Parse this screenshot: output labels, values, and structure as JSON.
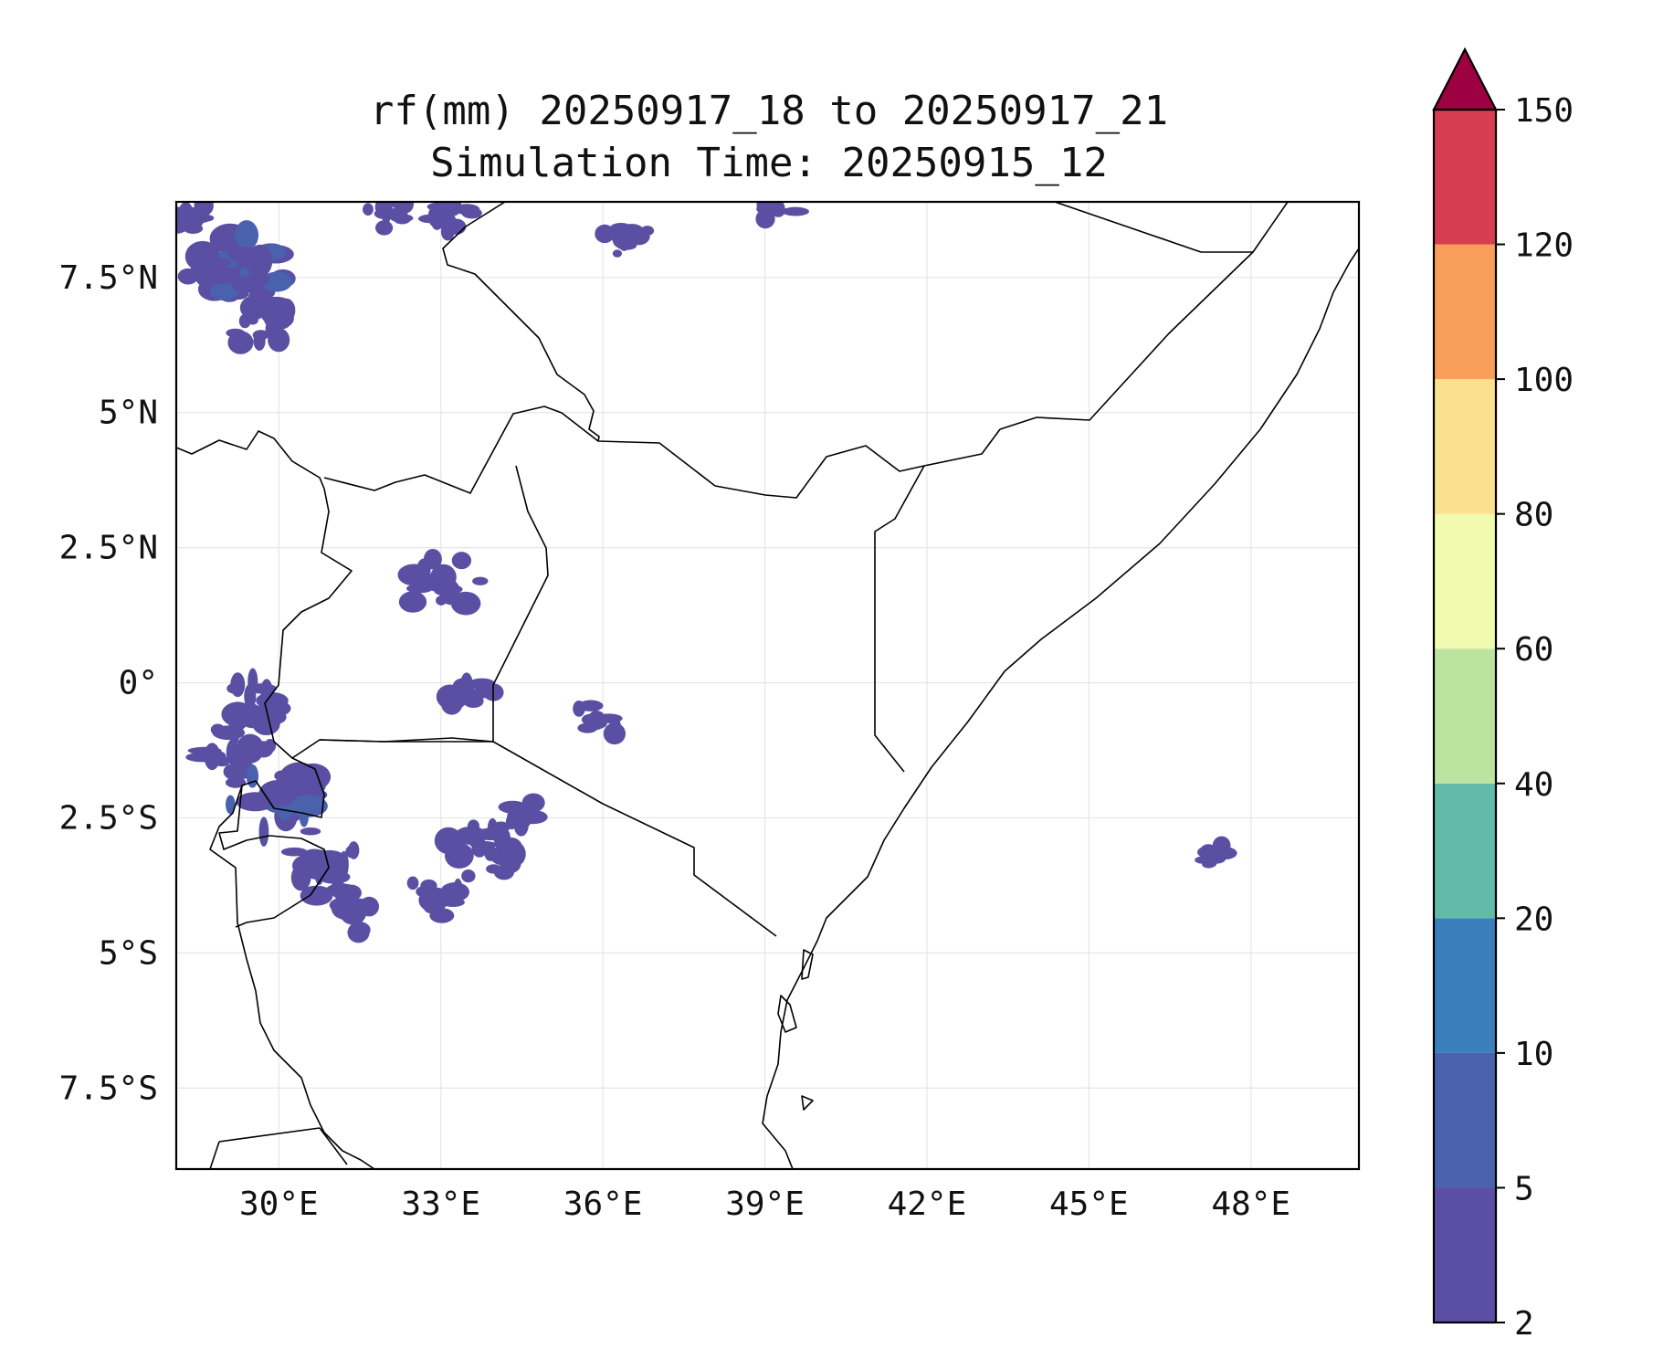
{
  "title": {
    "line1": "rf(mm) 20250917_18 to 20250917_21",
    "line2": "Simulation Time: 20250915_12"
  },
  "map": {
    "lon_range": [
      28.1,
      50.0
    ],
    "lat_range": [
      -9.0,
      8.9
    ],
    "x_ticks": [
      {
        "value": 30,
        "label": "30°E"
      },
      {
        "value": 33,
        "label": "33°E"
      },
      {
        "value": 36,
        "label": "36°E"
      },
      {
        "value": 39,
        "label": "39°E"
      },
      {
        "value": 42,
        "label": "42°E"
      },
      {
        "value": 45,
        "label": "45°E"
      },
      {
        "value": 48,
        "label": "48°E"
      }
    ],
    "y_ticks": [
      {
        "value": 7.5,
        "label": "7.5°N"
      },
      {
        "value": 5,
        "label": "5°N"
      },
      {
        "value": 2.5,
        "label": "2.5°N"
      },
      {
        "value": 0,
        "label": "0°"
      },
      {
        "value": -2.5,
        "label": "2.5°S"
      },
      {
        "value": -5,
        "label": "5°S"
      },
      {
        "value": -7.5,
        "label": "7.5°S"
      }
    ],
    "grid": true
  },
  "colorbar": {
    "levels": [
      {
        "label": "2",
        "color": "#5a4fa2"
      },
      {
        "label": "5",
        "color": "#4a61ad"
      },
      {
        "label": "10",
        "color": "#3a7fbb"
      },
      {
        "label": "20",
        "color": "#62bba9"
      },
      {
        "label": "40",
        "color": "#bce4a0"
      },
      {
        "label": "60",
        "color": "#f2faaf"
      },
      {
        "label": "80",
        "color": "#fbe08e"
      },
      {
        "label": "100",
        "color": "#f99d5b"
      },
      {
        "label": "120",
        "color": "#d63d50"
      },
      {
        "label": "150",
        "color": "#9e0142"
      }
    ],
    "extend": "max"
  },
  "rain_cells": [
    {
      "lon": 28.9,
      "lat": 7.7,
      "mm": 4
    },
    {
      "lon": 29.6,
      "lat": 7.3,
      "mm": 3
    },
    {
      "lon": 29.3,
      "lat": 7.9,
      "mm": 6
    },
    {
      "lon": 29.7,
      "lat": 6.6,
      "mm": 3
    },
    {
      "lon": 28.4,
      "lat": 8.6,
      "mm": 2
    },
    {
      "lon": 32.1,
      "lat": 8.7,
      "mm": 2
    },
    {
      "lon": 33.1,
      "lat": 8.7,
      "mm": 2
    },
    {
      "lon": 36.4,
      "lat": 8.3,
      "mm": 2
    },
    {
      "lon": 39.2,
      "lat": 8.8,
      "mm": 2
    },
    {
      "lon": 33.0,
      "lat": 1.8,
      "mm": 4
    },
    {
      "lon": 29.6,
      "lat": -0.6,
      "mm": 5
    },
    {
      "lon": 29.3,
      "lat": -1.3,
      "mm": 4
    },
    {
      "lon": 30.1,
      "lat": -2.3,
      "mm": 6
    },
    {
      "lon": 30.8,
      "lat": -3.4,
      "mm": 5
    },
    {
      "lon": 31.3,
      "lat": -4.2,
      "mm": 3
    },
    {
      "lon": 33.8,
      "lat": -3.1,
      "mm": 4
    },
    {
      "lon": 32.8,
      "lat": -3.9,
      "mm": 3
    },
    {
      "lon": 34.5,
      "lat": -2.5,
      "mm": 3
    },
    {
      "lon": 33.4,
      "lat": -0.2,
      "mm": 3
    },
    {
      "lon": 35.9,
      "lat": -0.7,
      "mm": 2
    },
    {
      "lon": 47.3,
      "lat": -3.2,
      "mm": 2
    }
  ]
}
